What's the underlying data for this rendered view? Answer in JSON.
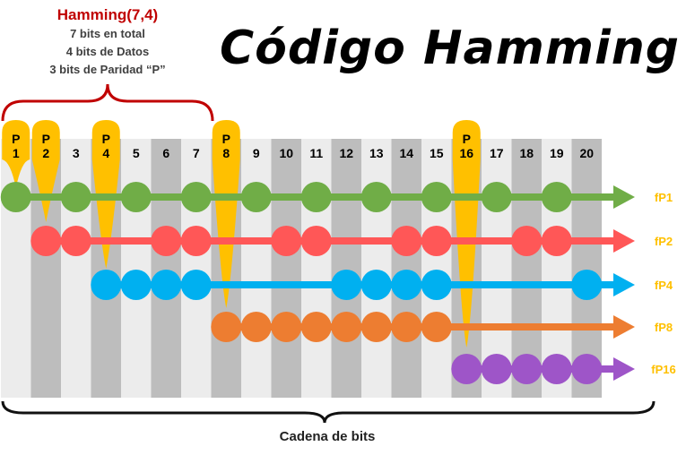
{
  "title": "Código Hamming",
  "hamming_info": {
    "title": "Hamming(7,4)",
    "lines": [
      "7 bits en total",
      "4 bits de Datos",
      "3 bits de Paridad “P”"
    ]
  },
  "bit_string_label": "Cadena de bits",
  "positions": [
    "1",
    "2",
    "3",
    "4",
    "5",
    "6",
    "7",
    "8",
    "9",
    "10",
    "11",
    "12",
    "13",
    "14",
    "15",
    "16",
    "17",
    "18",
    "19",
    "20"
  ],
  "parity_positions": [
    1,
    2,
    4,
    8,
    16
  ],
  "parity_letter": "P",
  "parity_groups": [
    {
      "label": "fP1",
      "color": "#70ad47",
      "dots": [
        1,
        3,
        5,
        7,
        9,
        11,
        13,
        15,
        17,
        19
      ]
    },
    {
      "label": "fP2",
      "color": "#ff5757",
      "dots": [
        2,
        3,
        6,
        7,
        10,
        11,
        14,
        15,
        18,
        19
      ]
    },
    {
      "label": "fP4",
      "color": "#00b0f0",
      "dots": [
        4,
        5,
        6,
        7,
        12,
        13,
        14,
        15,
        20
      ]
    },
    {
      "label": "fP8",
      "color": "#ed7d31",
      "dots": [
        8,
        9,
        10,
        11,
        12,
        13,
        14,
        15
      ]
    },
    {
      "label": "fP16",
      "color": "#9e55c8",
      "dots": [
        16,
        17,
        18,
        19,
        20
      ]
    }
  ],
  "colors": {
    "parity_marker": "#ffc000",
    "label_text": "#ffc000",
    "bracket": "#c00000",
    "col_light": "#ececec",
    "col_dark": "#bdbdbd"
  }
}
